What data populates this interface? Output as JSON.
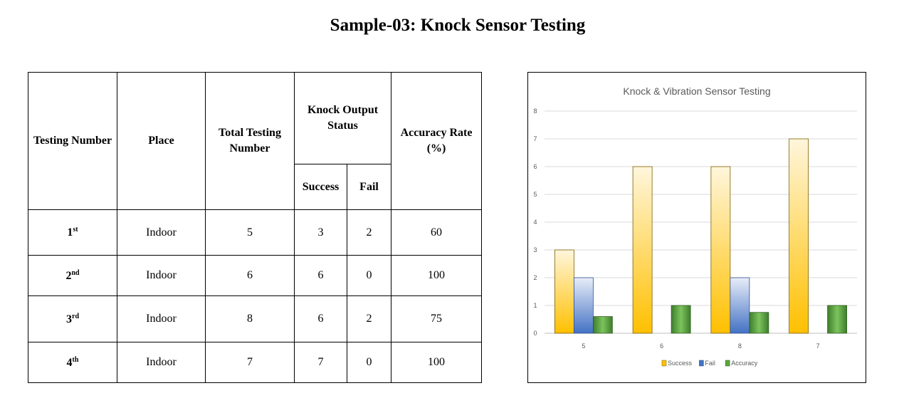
{
  "title": "Sample-03: Knock Sensor Testing",
  "table": {
    "headers": {
      "testing_number": "Testing Number",
      "place": "Place",
      "total_testing_number": "Total Testing Number",
      "knock_output_status": "Knock Output Status",
      "success": "Success",
      "fail": "Fail",
      "accuracy_rate": "Accuracy Rate (%)"
    },
    "rows": [
      {
        "num": "1",
        "suffix": "st",
        "place": "Indoor",
        "total": "5",
        "success": "3",
        "fail": "2",
        "accuracy": "60"
      },
      {
        "num": "2",
        "suffix": "nd",
        "place": "Indoor",
        "total": "6",
        "success": "6",
        "fail": "0",
        "accuracy": "100"
      },
      {
        "num": "3",
        "suffix": "rd",
        "place": "Indoor",
        "total": "8",
        "success": "6",
        "fail": "2",
        "accuracy": "75"
      },
      {
        "num": "4",
        "suffix": "th",
        "place": "Indoor",
        "total": "7",
        "success": "7",
        "fail": "0",
        "accuracy": "100"
      }
    ]
  },
  "chart_data": {
    "type": "bar",
    "title": "Knock & Vibration Sensor Testing",
    "categories": [
      "5",
      "6",
      "8",
      "7"
    ],
    "series": [
      {
        "name": "Success",
        "values": [
          3,
          6,
          6,
          7
        ]
      },
      {
        "name": "Fail",
        "values": [
          2,
          0,
          2,
          0
        ]
      },
      {
        "name": "Accuracy",
        "values": [
          0.6,
          1,
          0.75,
          1
        ]
      }
    ],
    "ylim": [
      0,
      8
    ],
    "yticks": [
      "0",
      "1",
      "2",
      "3",
      "4",
      "5",
      "6",
      "7",
      "8"
    ],
    "grid": true,
    "legend": "bottom",
    "colors": {
      "Success": "#ffc000",
      "Fail": "#4472c4",
      "Accuracy": "#4e9a3a"
    }
  }
}
